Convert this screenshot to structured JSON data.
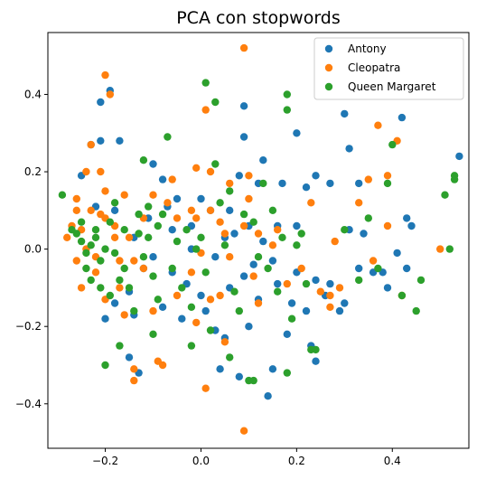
{
  "chart_data": {
    "type": "scatter",
    "title": "PCA con stopwords",
    "xlabel": "",
    "ylabel": "",
    "xlim": [
      -0.32,
      0.56
    ],
    "ylim": [
      -0.515,
      0.56
    ],
    "xticks": [
      -0.2,
      0.0,
      0.2,
      0.4
    ],
    "xtick_labels": [
      "−0.2",
      "0.0",
      "0.2",
      "0.4"
    ],
    "yticks": [
      -0.4,
      -0.2,
      0.0,
      0.2,
      0.4
    ],
    "ytick_labels": [
      "−0.4",
      "−0.2",
      "0.0",
      "0.2",
      "0.4"
    ],
    "grid": false,
    "legend_position": "top-right",
    "series": [
      {
        "name": "Antony",
        "color": "#1f77b4",
        "points": [
          [
            -0.19,
            0.41
          ],
          [
            -0.21,
            0.38
          ],
          [
            -0.21,
            0.28
          ],
          [
            -0.17,
            0.28
          ],
          [
            -0.25,
            0.19
          ],
          [
            -0.23,
            0.27
          ],
          [
            -0.22,
            0.11
          ],
          [
            -0.18,
            0.1
          ],
          [
            -0.11,
            0.08
          ],
          [
            -0.06,
            0.05
          ],
          [
            -0.05,
            0.13
          ],
          [
            -0.14,
            0.03
          ],
          [
            -0.12,
            -0.05
          ],
          [
            -0.15,
            -0.11
          ],
          [
            -0.18,
            -0.14
          ],
          [
            -0.2,
            -0.18
          ],
          [
            -0.14,
            -0.17
          ],
          [
            -0.15,
            -0.28
          ],
          [
            -0.13,
            -0.32
          ],
          [
            -0.08,
            -0.15
          ],
          [
            -0.04,
            -0.18
          ],
          [
            0.01,
            -0.16
          ],
          [
            0.03,
            -0.21
          ],
          [
            0.05,
            -0.23
          ],
          [
            0.04,
            -0.31
          ],
          [
            0.08,
            -0.33
          ],
          [
            0.15,
            -0.31
          ],
          [
            0.14,
            -0.38
          ],
          [
            0.09,
            0.37
          ],
          [
            0.09,
            0.29
          ],
          [
            0.08,
            0.19
          ],
          [
            0.12,
            0.17
          ],
          [
            0.13,
            0.23
          ],
          [
            0.17,
            0.17
          ],
          [
            0.2,
            0.3
          ],
          [
            0.27,
            0.17
          ],
          [
            0.3,
            0.35
          ],
          [
            0.31,
            0.26
          ],
          [
            0.33,
            0.17
          ],
          [
            0.24,
            0.19
          ],
          [
            0.22,
            0.16
          ],
          [
            0.2,
            0.06
          ],
          [
            0.16,
            0.06
          ],
          [
            0.1,
            0.06
          ],
          [
            0.07,
            0.04
          ],
          [
            0.05,
            0.03
          ],
          [
            0.03,
            -0.02
          ],
          [
            0.11,
            -0.04
          ],
          [
            0.15,
            -0.03
          ],
          [
            0.2,
            -0.06
          ],
          [
            0.24,
            -0.08
          ],
          [
            0.26,
            -0.12
          ],
          [
            0.29,
            -0.16
          ],
          [
            0.33,
            -0.05
          ],
          [
            0.36,
            -0.06
          ],
          [
            0.38,
            -0.06
          ],
          [
            0.41,
            -0.01
          ],
          [
            0.43,
            -0.05
          ],
          [
            0.43,
            0.08
          ],
          [
            0.44,
            0.06
          ],
          [
            0.42,
            0.34
          ],
          [
            0.54,
            0.24
          ],
          [
            0.39,
            -0.1
          ],
          [
            0.3,
            -0.14
          ],
          [
            0.24,
            -0.29
          ],
          [
            0.23,
            -0.25
          ],
          [
            0.18,
            -0.22
          ],
          [
            0.1,
            -0.2
          ],
          [
            0.0,
            0.13
          ],
          [
            -0.02,
            0.06
          ],
          [
            -0.1,
            0.22
          ],
          [
            -0.08,
            0.18
          ],
          [
            -0.07,
            0.11
          ],
          [
            -0.06,
            -0.06
          ],
          [
            -0.03,
            -0.09
          ],
          [
            0.0,
            -0.12
          ],
          [
            0.06,
            -0.1
          ],
          [
            -0.1,
            -0.02
          ],
          [
            0.12,
            -0.13
          ],
          [
            0.16,
            -0.09
          ],
          [
            0.19,
            -0.14
          ],
          [
            0.22,
            -0.16
          ],
          [
            0.27,
            -0.09
          ],
          [
            0.31,
            0.05
          ],
          [
            0.34,
            0.04
          ],
          [
            0.06,
            0.1
          ],
          [
            0.02,
            0.1
          ],
          [
            -0.02,
            0.0
          ],
          [
            0.13,
            0.02
          ],
          [
            0.09,
            -0.07
          ]
        ]
      },
      {
        "name": "Cleopatra",
        "color": "#ff7f0e",
        "points": [
          [
            -0.2,
            0.45
          ],
          [
            -0.19,
            0.4
          ],
          [
            -0.23,
            0.27
          ],
          [
            -0.21,
            0.2
          ],
          [
            -0.2,
            0.15
          ],
          [
            -0.16,
            0.14
          ],
          [
            -0.24,
            0.2
          ],
          [
            -0.26,
            0.13
          ],
          [
            -0.26,
            0.1
          ],
          [
            -0.27,
            0.06
          ],
          [
            -0.28,
            0.03
          ],
          [
            -0.26,
            -0.03
          ],
          [
            -0.23,
            0.1
          ],
          [
            -0.2,
            0.08
          ],
          [
            -0.18,
            0.06
          ],
          [
            -0.15,
            0.03
          ],
          [
            -0.14,
            -0.03
          ],
          [
            -0.12,
            -0.05
          ],
          [
            -0.17,
            -0.1
          ],
          [
            -0.14,
            -0.34
          ],
          [
            -0.14,
            -0.31
          ],
          [
            -0.08,
            -0.3
          ],
          [
            -0.09,
            -0.29
          ],
          [
            0.01,
            -0.36
          ],
          [
            0.09,
            -0.47
          ],
          [
            0.09,
            0.52
          ],
          [
            0.01,
            0.36
          ],
          [
            0.02,
            0.2
          ],
          [
            -0.01,
            0.21
          ],
          [
            -0.06,
            0.18
          ],
          [
            -0.07,
            0.12
          ],
          [
            -0.05,
            0.08
          ],
          [
            -0.01,
            0.08
          ],
          [
            0.02,
            0.1
          ],
          [
            0.04,
            0.07
          ],
          [
            0.06,
            0.17
          ],
          [
            0.1,
            0.19
          ],
          [
            0.1,
            0.13
          ],
          [
            0.09,
            0.06
          ],
          [
            0.05,
            0.04
          ],
          [
            0.02,
            -0.13
          ],
          [
            0.04,
            -0.12
          ],
          [
            -0.01,
            -0.19
          ],
          [
            0.05,
            -0.24
          ],
          [
            0.11,
            -0.07
          ],
          [
            0.12,
            -0.14
          ],
          [
            0.18,
            -0.09
          ],
          [
            0.21,
            -0.05
          ],
          [
            0.25,
            -0.11
          ],
          [
            0.27,
            -0.15
          ],
          [
            0.28,
            0.02
          ],
          [
            0.29,
            -0.1
          ],
          [
            0.33,
            0.12
          ],
          [
            0.35,
            0.18
          ],
          [
            0.37,
            0.32
          ],
          [
            0.39,
            0.06
          ],
          [
            0.41,
            0.28
          ],
          [
            0.39,
            0.19
          ],
          [
            0.42,
            -0.12
          ],
          [
            0.5,
            0.0
          ],
          [
            0.36,
            -0.03
          ],
          [
            0.23,
            0.12
          ],
          [
            0.16,
            0.05
          ],
          [
            0.12,
            0.04
          ],
          [
            0.15,
            0.01
          ],
          [
            0.06,
            -0.02
          ],
          [
            -0.1,
            0.14
          ],
          [
            -0.12,
            0.08
          ],
          [
            -0.17,
            -0.03
          ],
          [
            -0.22,
            -0.06
          ],
          [
            -0.25,
            -0.1
          ],
          [
            -0.2,
            -0.13
          ],
          [
            -0.16,
            -0.17
          ],
          [
            -0.1,
            -0.16
          ],
          [
            -0.05,
            -0.12
          ],
          [
            -0.02,
            -0.06
          ],
          [
            0.0,
            -0.01
          ],
          [
            -0.24,
            0.0
          ],
          [
            -0.22,
            -0.02
          ],
          [
            -0.25,
            0.05
          ],
          [
            -0.21,
            0.09
          ],
          [
            -0.18,
            0.03
          ],
          [
            0.27,
            -0.12
          ],
          [
            -0.02,
            0.1
          ]
        ]
      },
      {
        "name": "Queen Margaret",
        "color": "#2ca02c",
        "points": [
          [
            -0.29,
            0.14
          ],
          [
            -0.27,
            0.05
          ],
          [
            -0.26,
            0.04
          ],
          [
            -0.25,
            0.07
          ],
          [
            -0.25,
            0.02
          ],
          [
            -0.24,
            -0.01
          ],
          [
            -0.24,
            -0.05
          ],
          [
            -0.23,
            -0.08
          ],
          [
            -0.22,
            0.03
          ],
          [
            -0.22,
            0.05
          ],
          [
            -0.21,
            -0.03
          ],
          [
            -0.21,
            -0.1
          ],
          [
            -0.2,
            0.0
          ],
          [
            -0.19,
            0.07
          ],
          [
            -0.19,
            -0.12
          ],
          [
            -0.18,
            0.12
          ],
          [
            -0.17,
            -0.08
          ],
          [
            -0.16,
            -0.05
          ],
          [
            -0.16,
            0.05
          ],
          [
            -0.15,
            -0.1
          ],
          [
            -0.14,
            -0.16
          ],
          [
            -0.13,
            0.04
          ],
          [
            -0.13,
            0.09
          ],
          [
            -0.12,
            -0.02
          ],
          [
            -0.12,
            0.23
          ],
          [
            -0.11,
            0.11
          ],
          [
            -0.11,
            0.03
          ],
          [
            -0.1,
            -0.07
          ],
          [
            -0.09,
            -0.13
          ],
          [
            -0.09,
            0.06
          ],
          [
            -0.08,
            0.09
          ],
          [
            -0.07,
            0.29
          ],
          [
            -0.06,
            -0.05
          ],
          [
            -0.05,
            0.02
          ],
          [
            -0.04,
            -0.1
          ],
          [
            -0.03,
            0.05
          ],
          [
            -0.02,
            -0.15
          ],
          [
            -0.01,
            0.0
          ],
          [
            0.0,
            0.03
          ],
          [
            0.01,
            0.43
          ],
          [
            0.01,
            -0.06
          ],
          [
            0.02,
            -0.21
          ],
          [
            0.03,
            0.22
          ],
          [
            0.04,
            0.12
          ],
          [
            0.05,
            0.01
          ],
          [
            0.06,
            0.15
          ],
          [
            0.07,
            -0.11
          ],
          [
            0.08,
            -0.16
          ],
          [
            0.09,
            0.09
          ],
          [
            0.1,
            -0.34
          ],
          [
            0.11,
            0.07
          ],
          [
            0.12,
            -0.02
          ],
          [
            0.13,
            0.17
          ],
          [
            0.14,
            -0.05
          ],
          [
            0.15,
            0.1
          ],
          [
            0.16,
            -0.11
          ],
          [
            0.17,
            0.03
          ],
          [
            0.18,
            0.4
          ],
          [
            0.18,
            0.36
          ],
          [
            0.19,
            -0.18
          ],
          [
            0.2,
            0.01
          ],
          [
            0.21,
            0.04
          ],
          [
            0.22,
            -0.09
          ],
          [
            0.23,
            -0.26
          ],
          [
            0.24,
            -0.26
          ],
          [
            0.3,
            0.05
          ],
          [
            0.33,
            -0.08
          ],
          [
            0.35,
            0.08
          ],
          [
            0.37,
            -0.05
          ],
          [
            0.39,
            0.17
          ],
          [
            0.4,
            0.27
          ],
          [
            0.42,
            -0.12
          ],
          [
            0.45,
            -0.16
          ],
          [
            0.46,
            -0.08
          ],
          [
            0.51,
            0.14
          ],
          [
            0.53,
            0.19
          ],
          [
            0.53,
            0.18
          ],
          [
            0.52,
            0.0
          ],
          [
            -0.17,
            -0.25
          ],
          [
            -0.2,
            -0.3
          ],
          [
            -0.02,
            -0.25
          ],
          [
            0.06,
            -0.28
          ],
          [
            -0.1,
            -0.22
          ],
          [
            0.03,
            0.38
          ],
          [
            -0.23,
            0.01
          ],
          [
            -0.18,
            -0.01
          ],
          [
            0.11,
            -0.34
          ],
          [
            0.18,
            -0.32
          ]
        ]
      }
    ]
  }
}
